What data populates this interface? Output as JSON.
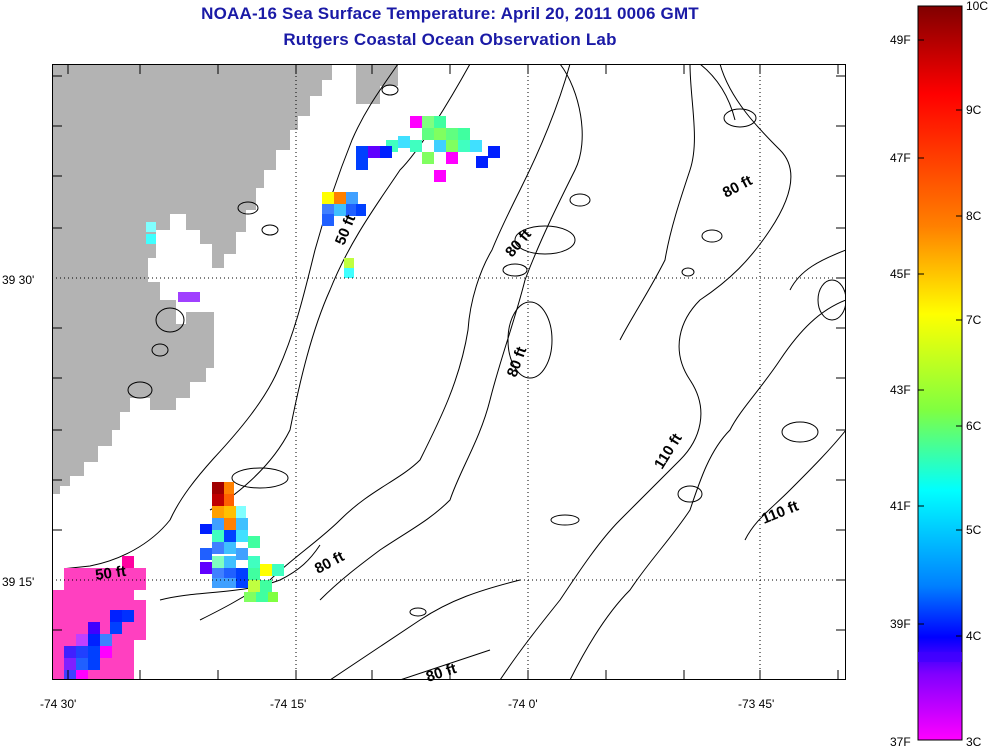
{
  "title": {
    "line1": "NOAA-16 Sea Surface Temperature:  April 20, 2011 0006 GMT",
    "line2": "Rutgers Coastal Ocean Observation Lab"
  },
  "axes": {
    "x_ticks": [
      "-74 30'",
      "-74 15'",
      "-74 0'",
      "-73 45'"
    ],
    "y_ticks": [
      "39 30'",
      "39 15'"
    ]
  },
  "contour_labels": [
    {
      "text": "50 ft"
    },
    {
      "text": "80 ft"
    },
    {
      "text": "80 ft"
    },
    {
      "text": "80 ft"
    },
    {
      "text": "110 ft"
    },
    {
      "text": "110 ft"
    },
    {
      "text": "80 ft"
    },
    {
      "text": "50 ft"
    },
    {
      "text": "80 ft"
    }
  ],
  "colorbar": {
    "f_labels": [
      "49F",
      "47F",
      "45F",
      "43F",
      "41F",
      "39F",
      "37F"
    ],
    "c_labels": [
      "10C",
      "9C",
      "8C",
      "7C",
      "6C",
      "5C",
      "4C",
      "3C"
    ],
    "colors": {
      "top": "#800000",
      "red": "#ff0000",
      "orange": "#ff8000",
      "yellow": "#ffff00",
      "green": "#80ff40",
      "cyan": "#00ffff",
      "blue": "#0000ff",
      "purple": "#8000ff",
      "magenta": "#ff00ff"
    }
  },
  "map_colors": {
    "land": "#b3b3b3",
    "water": "#ffffff",
    "contour": "#000000"
  }
}
